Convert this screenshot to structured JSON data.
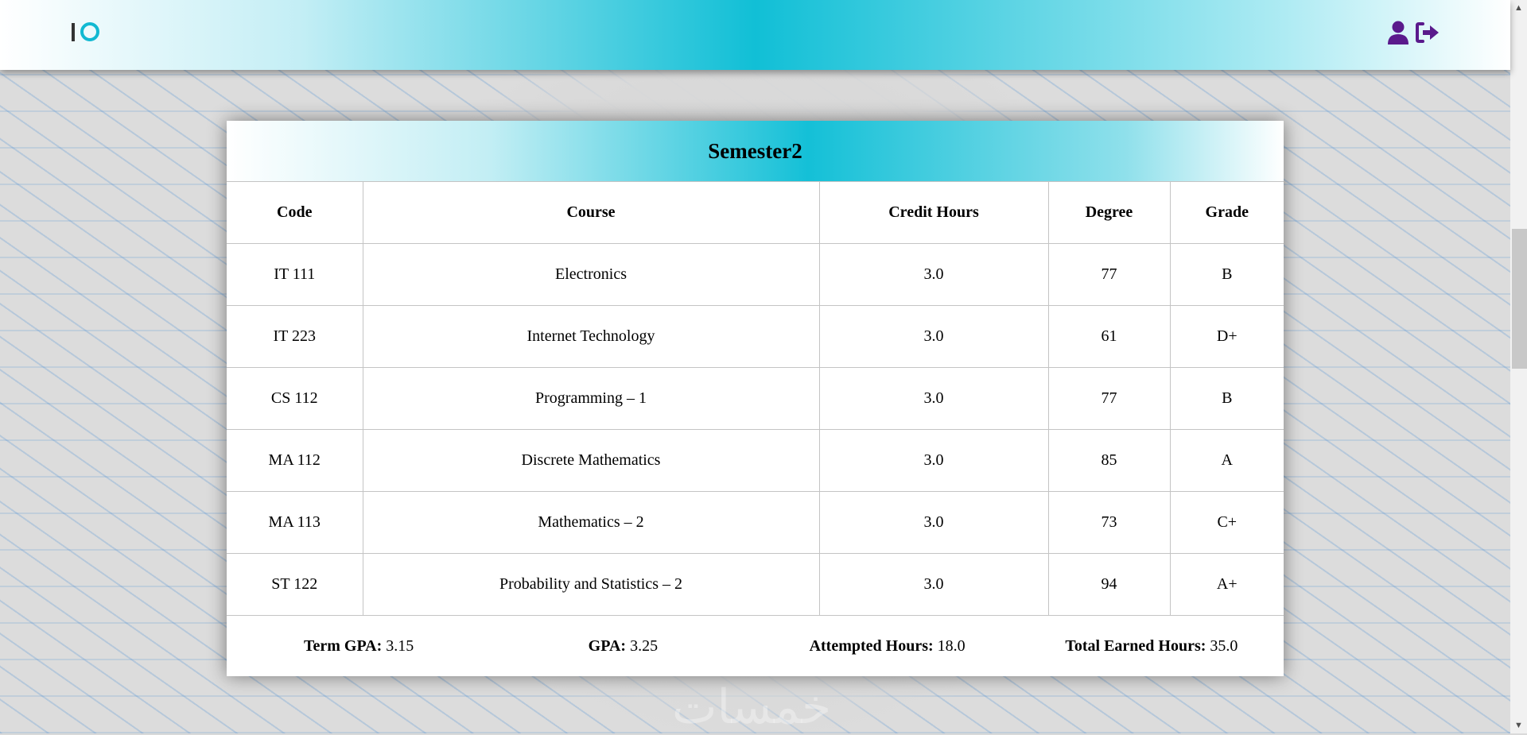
{
  "header": {
    "logo": "IO",
    "icons": [
      "user-icon",
      "sign-out-icon"
    ]
  },
  "semester": {
    "title": "Semester2"
  },
  "table": {
    "columns": [
      "Code",
      "Course",
      "Credit Hours",
      "Degree",
      "Grade"
    ],
    "rows": [
      [
        "IT 111",
        "Electronics",
        "3.0",
        "77",
        "B"
      ],
      [
        "IT 223",
        "Internet Technology",
        "3.0",
        "61",
        "D+"
      ],
      [
        "CS 112",
        "Programming – 1",
        "3.0",
        "77",
        "B"
      ],
      [
        "MA 112",
        "Discrete Mathematics",
        "3.0",
        "85",
        "A"
      ],
      [
        "MA 113",
        "Mathematics – 2",
        "3.0",
        "73",
        "C+"
      ],
      [
        "ST 122",
        "Probability and Statistics – 2",
        "3.0",
        "94",
        "A+"
      ]
    ]
  },
  "summary": {
    "term_gpa_label": "Term GPA:",
    "term_gpa": "3.15",
    "gpa_label": "GPA:",
    "gpa": "3.25",
    "attempted_label": "Attempted Hours:",
    "attempted": "18.0",
    "earned_label": "Total Earned Hours:",
    "earned": "35.0"
  },
  "watermark": "خمسات",
  "colors": {
    "accent": "#11bfd6",
    "icon": "#5a1a8c"
  }
}
